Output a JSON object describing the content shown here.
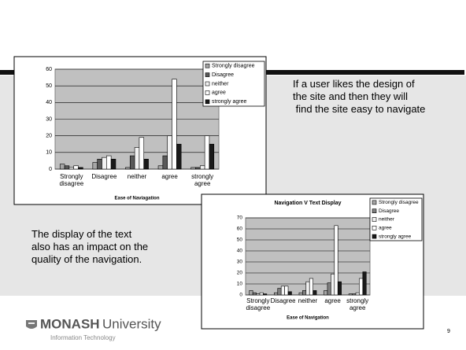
{
  "slide": {
    "note_right": [
      "If a user likes the design of",
      "the site and then they will",
      " find the site easy to navigate"
    ],
    "note_left": [
      "The display of the text",
      "also has an impact on the",
      "quality of the navigation."
    ],
    "logo": {
      "name_bold": "MONASH",
      "name": "University",
      "subtitle": "Information Technology"
    },
    "page_number": "9"
  },
  "chart_data": [
    {
      "type": "bar",
      "x_label": "Ease of Naviagation",
      "categories": [
        "Strongly disagree",
        "Disagree",
        "neither",
        "agree",
        "strongly agree"
      ],
      "series": [
        {
          "name": "Strongly disagree",
          "color": "#a6a6a6",
          "values": [
            3,
            4,
            1,
            2,
            1
          ]
        },
        {
          "name": "Disagree",
          "color": "#595959",
          "values": [
            2,
            6,
            8,
            8,
            1
          ]
        },
        {
          "name": "neither",
          "color": "#f2f2f2",
          "values": [
            1,
            7,
            13,
            20,
            2
          ]
        },
        {
          "name": "agree",
          "color": "#ffffff",
          "values": [
            2,
            8,
            19,
            54,
            20
          ]
        },
        {
          "name": "strongly agree",
          "color": "#1a1a1a",
          "values": [
            1,
            6,
            6,
            15,
            15
          ]
        }
      ],
      "ylim": [
        0,
        60
      ],
      "yticks": [
        0,
        10,
        20,
        30,
        40,
        50,
        60
      ],
      "grid": true,
      "legend": "top-right"
    },
    {
      "type": "bar",
      "title": "Navigation V Text Display",
      "x_label": "Ease of Navigation",
      "categories": [
        "Strongly disagree",
        "Disagree",
        "neither",
        "agree",
        "strongly agree"
      ],
      "series": [
        {
          "name": "Strongly disagree",
          "color": "#a6a6a6",
          "values": [
            4,
            2,
            2,
            4,
            1
          ]
        },
        {
          "name": "Disagree",
          "color": "#7f7f7f",
          "values": [
            2,
            6,
            4,
            11,
            1
          ]
        },
        {
          "name": "neither",
          "color": "#f2f2f2",
          "values": [
            1,
            8,
            12,
            19,
            2
          ]
        },
        {
          "name": "agree",
          "color": "#ffffff",
          "values": [
            2,
            8,
            15,
            63,
            15
          ]
        },
        {
          "name": "strongly agree",
          "color": "#1a1a1a",
          "values": [
            1,
            3,
            4,
            12,
            21
          ]
        }
      ],
      "ylim": [
        0,
        70
      ],
      "yticks": [
        0,
        10,
        20,
        30,
        40,
        50,
        60,
        70
      ],
      "grid": true,
      "legend": "top-right"
    }
  ]
}
